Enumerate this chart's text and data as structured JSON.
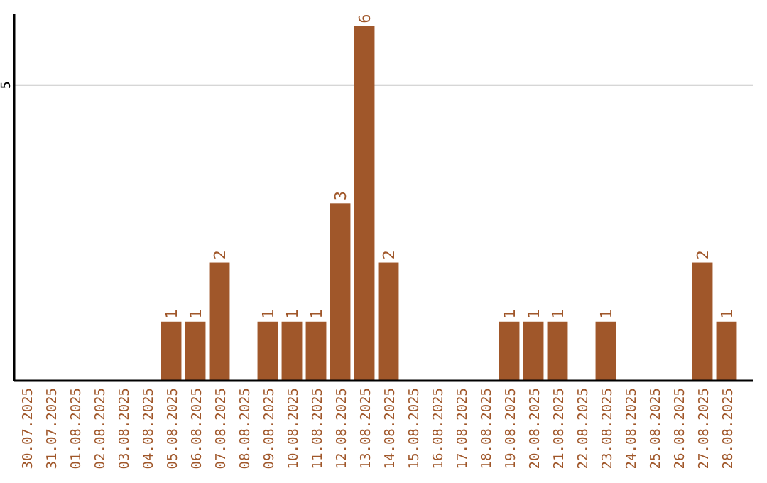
{
  "chart_data": {
    "type": "bar",
    "categories": [
      "30.07.2025",
      "31.07.2025",
      "01.08.2025",
      "02.08.2025",
      "03.08.2025",
      "04.08.2025",
      "05.08.2025",
      "06.08.2025",
      "07.08.2025",
      "08.08.2025",
      "09.08.2025",
      "10.08.2025",
      "11.08.2025",
      "12.08.2025",
      "13.08.2025",
      "14.08.2025",
      "15.08.2025",
      "16.08.2025",
      "17.08.2025",
      "18.08.2025",
      "19.08.2025",
      "20.08.2025",
      "21.08.2025",
      "22.08.2025",
      "23.08.2025",
      "24.08.2025",
      "25.08.2025",
      "26.08.2025",
      "27.08.2025",
      "28.08.2025"
    ],
    "values": [
      0,
      0,
      0,
      0,
      0,
      0,
      1,
      1,
      2,
      0,
      1,
      1,
      1,
      3,
      6,
      2,
      0,
      0,
      0,
      0,
      1,
      1,
      1,
      0,
      1,
      0,
      0,
      0,
      2,
      1
    ],
    "value_labels": [
      null,
      null,
      null,
      null,
      null,
      null,
      "1",
      "1",
      "2",
      null,
      "1",
      "1",
      "1",
      "3",
      "6",
      "2",
      null,
      null,
      null,
      null,
      "1",
      "1",
      "1",
      null,
      "1",
      null,
      null,
      null,
      "2",
      "1"
    ],
    "color": "#a0572a",
    "ylim": [
      0,
      6.2
    ],
    "yticks": [
      5
    ],
    "grid": "y"
  }
}
